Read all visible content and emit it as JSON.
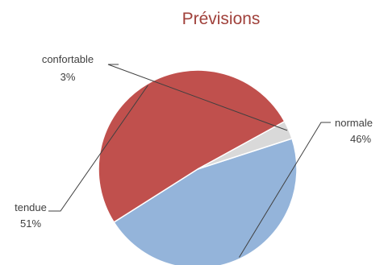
{
  "chart_data": {
    "type": "pie",
    "title": "Prévisions",
    "slices": [
      {
        "label": "normale",
        "value": 46,
        "percent_label": "46%",
        "color": "#94b4da"
      },
      {
        "label": "tendue",
        "value": 51,
        "percent_label": "51%",
        "color": "#c0504d"
      },
      {
        "label": "confortable",
        "value": 3,
        "percent_label": "3%",
        "color": "#d9d9d9"
      }
    ],
    "start_angle_deg": 72,
    "direction": "clockwise",
    "slice_border_color": "#ffffff",
    "title_color": "#a0413b",
    "label_color": "#404040"
  }
}
